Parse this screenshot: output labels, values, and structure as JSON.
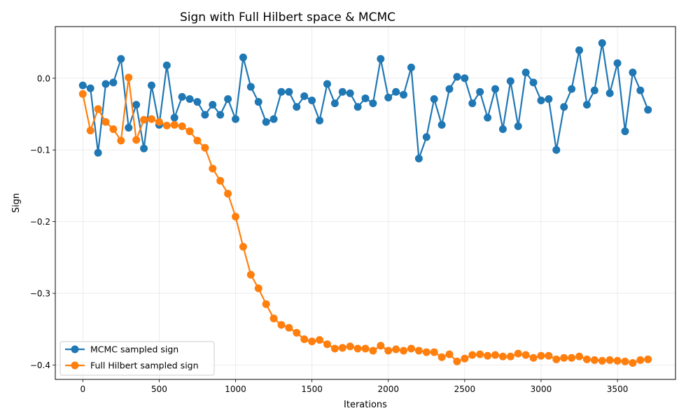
{
  "chart_data": {
    "type": "line",
    "title": "Sign with Full Hilbert space & MCMC",
    "xlabel": "Iterations",
    "ylabel": "Sign",
    "xlim": [
      -180,
      3880
    ],
    "ylim": [
      -0.42,
      0.072
    ],
    "x_ticks": [
      0,
      500,
      1000,
      1500,
      2000,
      2500,
      3000,
      3500
    ],
    "y_ticks": [
      -0.4,
      -0.3,
      -0.2,
      -0.1,
      0.0
    ],
    "x_tick_labels": [
      "0",
      "500",
      "1000",
      "1500",
      "2000",
      "2500",
      "3000",
      "3500"
    ],
    "y_tick_labels": [
      "−0.4",
      "−0.3",
      "−0.2",
      "−0.1",
      "0.0"
    ],
    "grid": true,
    "legend_position": "lower-left",
    "x": [
      0,
      50,
      100,
      150,
      200,
      250,
      300,
      350,
      400,
      450,
      500,
      550,
      600,
      650,
      700,
      750,
      800,
      850,
      900,
      950,
      1000,
      1050,
      1100,
      1150,
      1200,
      1250,
      1300,
      1350,
      1400,
      1450,
      1500,
      1550,
      1600,
      1650,
      1700,
      1750,
      1800,
      1850,
      1900,
      1950,
      2000,
      2050,
      2100,
      2150,
      2200,
      2250,
      2300,
      2350,
      2400,
      2450,
      2500,
      2550,
      2600,
      2650,
      2700,
      2750,
      2800,
      2850,
      2900,
      2950,
      3000,
      3050,
      3100,
      3150,
      3200,
      3250,
      3300,
      3350,
      3400,
      3450,
      3500,
      3550,
      3600,
      3650,
      3700
    ],
    "series": [
      {
        "name": "MCMC sampled sign",
        "color": "#1f77b4",
        "values": [
          -0.01,
          -0.014,
          -0.104,
          -0.008,
          -0.006,
          0.027,
          -0.069,
          -0.037,
          -0.098,
          -0.01,
          -0.065,
          0.018,
          -0.055,
          -0.026,
          -0.029,
          -0.033,
          -0.051,
          -0.037,
          -0.051,
          -0.029,
          -0.057,
          0.029,
          -0.012,
          -0.033,
          -0.061,
          -0.057,
          -0.019,
          -0.019,
          -0.04,
          -0.025,
          -0.031,
          -0.059,
          -0.008,
          -0.035,
          -0.019,
          -0.021,
          -0.04,
          -0.028,
          -0.035,
          0.027,
          -0.027,
          -0.019,
          -0.023,
          0.015,
          -0.112,
          -0.082,
          -0.029,
          -0.065,
          -0.015,
          0.002,
          0.0,
          -0.035,
          -0.019,
          -0.055,
          -0.015,
          -0.071,
          -0.004,
          -0.067,
          0.008,
          -0.006,
          -0.031,
          -0.029,
          -0.1,
          -0.04,
          -0.015,
          0.039,
          -0.037,
          -0.017,
          0.049,
          -0.021,
          0.021,
          -0.074,
          0.008,
          -0.017,
          -0.044
        ]
      },
      {
        "name": "Full Hilbert sampled sign",
        "color": "#ff7f0e",
        "values": [
          -0.022,
          -0.073,
          -0.043,
          -0.061,
          -0.071,
          -0.087,
          0.001,
          -0.086,
          -0.058,
          -0.057,
          -0.061,
          -0.066,
          -0.065,
          -0.067,
          -0.074,
          -0.087,
          -0.097,
          -0.126,
          -0.143,
          -0.161,
          -0.193,
          -0.235,
          -0.274,
          -0.293,
          -0.315,
          -0.335,
          -0.344,
          -0.348,
          -0.355,
          -0.364,
          -0.367,
          -0.365,
          -0.371,
          -0.377,
          -0.376,
          -0.374,
          -0.377,
          -0.377,
          -0.38,
          -0.373,
          -0.38,
          -0.378,
          -0.38,
          -0.377,
          -0.38,
          -0.382,
          -0.382,
          -0.389,
          -0.385,
          -0.395,
          -0.391,
          -0.386,
          -0.385,
          -0.387,
          -0.386,
          -0.388,
          -0.388,
          -0.384,
          -0.386,
          -0.39,
          -0.387,
          -0.387,
          -0.392,
          -0.39,
          -0.39,
          -0.388,
          -0.392,
          -0.393,
          -0.394,
          -0.393,
          -0.394,
          -0.395,
          -0.397,
          -0.393,
          -0.392
        ]
      }
    ]
  }
}
